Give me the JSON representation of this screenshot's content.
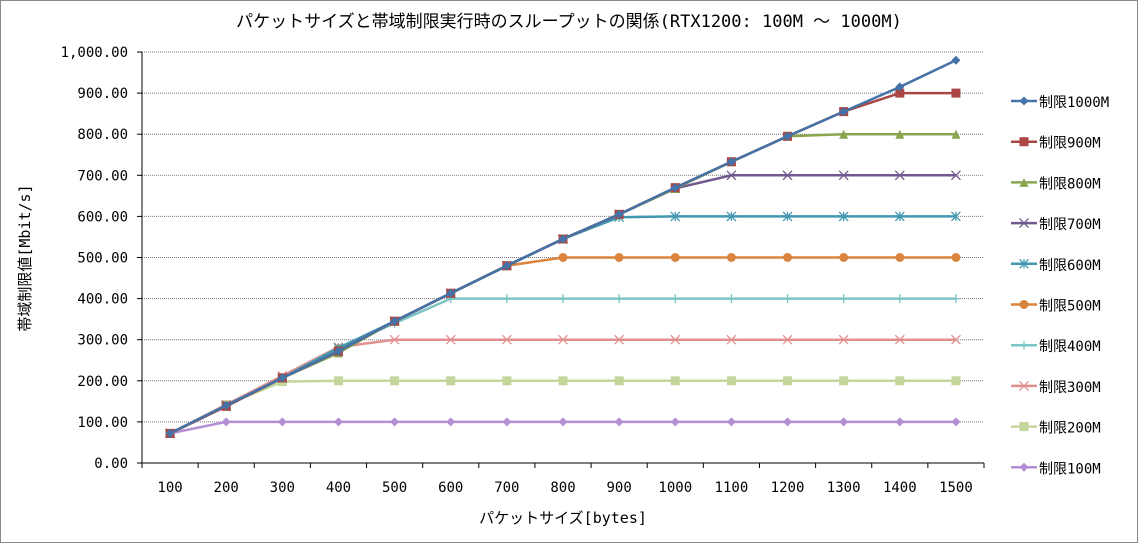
{
  "chart_data": {
    "type": "line",
    "title": "パケットサイズと帯域制限実行時のスループットの関係(RTX1200: 100M 〜 1000M)",
    "xlabel": "パケットサイズ[bytes]",
    "ylabel": "帯域制限値[Mbit/s]",
    "categories": [
      "100",
      "200",
      "300",
      "400",
      "500",
      "600",
      "700",
      "800",
      "900",
      "1000",
      "1100",
      "1200",
      "1300",
      "1400",
      "1500"
    ],
    "ylim": [
      0,
      1000
    ],
    "yticks": [
      "0.00",
      "100.00",
      "200.00",
      "300.00",
      "400.00",
      "500.00",
      "600.00",
      "700.00",
      "800.00",
      "900.00",
      "1,000.00"
    ],
    "grid": true,
    "legend_position": "right",
    "series": [
      {
        "name": "制限1000M",
        "color": "#4572A7",
        "marker": "diamond",
        "values": [
          72,
          140,
          207,
          272,
          345,
          413,
          480,
          545,
          605,
          670,
          733,
          795,
          855,
          915,
          980
        ]
      },
      {
        "name": "制限900M",
        "color": "#AA4643",
        "marker": "square",
        "values": [
          72,
          138,
          207,
          272,
          345,
          413,
          480,
          545,
          605,
          670,
          733,
          795,
          855,
          900,
          900
        ]
      },
      {
        "name": "制限800M",
        "color": "#89A54E",
        "marker": "triangle",
        "values": [
          72,
          138,
          207,
          268,
          345,
          413,
          480,
          545,
          605,
          668,
          733,
          795,
          800,
          800,
          800
        ]
      },
      {
        "name": "制限700M",
        "color": "#71588F",
        "marker": "x",
        "values": [
          72,
          138,
          207,
          272,
          345,
          413,
          480,
          545,
          605,
          668,
          700,
          700,
          700,
          700,
          700
        ]
      },
      {
        "name": "制限600M",
        "color": "#4198AF",
        "marker": "star",
        "values": [
          72,
          140,
          207,
          280,
          345,
          413,
          480,
          545,
          598,
          600,
          600,
          600,
          600,
          600,
          600
        ]
      },
      {
        "name": "制限500M",
        "color": "#DB843D",
        "marker": "circle",
        "values": [
          72,
          138,
          207,
          278,
          345,
          413,
          480,
          500,
          500,
          500,
          500,
          500,
          500,
          500,
          500
        ]
      },
      {
        "name": "制限400M",
        "color": "#7CC4C4",
        "marker": "plus",
        "values": [
          72,
          140,
          207,
          280,
          340,
          400,
          400,
          400,
          400,
          400,
          400,
          400,
          400,
          400,
          400
        ]
      },
      {
        "name": "制限300M",
        "color": "#E0908E",
        "marker": "x",
        "values": [
          72,
          142,
          212,
          282,
          300,
          300,
          300,
          300,
          300,
          300,
          300,
          300,
          300,
          300,
          300
        ]
      },
      {
        "name": "制限200M",
        "color": "#C3D69B",
        "marker": "square",
        "values": [
          72,
          142,
          198,
          200,
          200,
          200,
          200,
          200,
          200,
          200,
          200,
          200,
          200,
          200,
          200
        ]
      },
      {
        "name": "制限100M",
        "color": "#B58FD3",
        "marker": "diamond",
        "values": [
          72,
          100,
          100,
          100,
          100,
          100,
          100,
          100,
          100,
          100,
          100,
          100,
          100,
          100,
          100
        ]
      }
    ]
  }
}
